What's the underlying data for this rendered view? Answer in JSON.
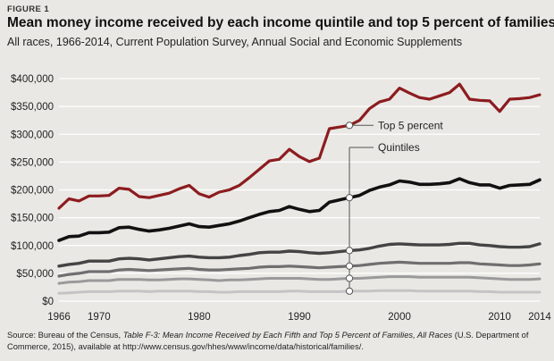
{
  "figure_label": "FIGURE 1",
  "title": "Mean money income received by each income quintile and top 5 percent of families",
  "subtitle": "All races, 1966-2014, Current Population Survey, Annual Social and Economic Supplements",
  "source": {
    "prefix": "Source: Bureau of the Census, ",
    "table_title": "Table F-3: Mean Income Received by Each Fifth and Top 5 Percent of Families, All Races",
    "suffix": " (U.S. Department of Commerce, 2015), available at http://www.census.gov/hhes/www/income/data/historical/families/."
  },
  "colors": {
    "top5": "#8c1c1f",
    "highest_quintile": "#111111",
    "fourth_quintile": "#444444",
    "third_quintile": "#6f6f6f",
    "second_quintile": "#9a9a9a",
    "lowest_quintile": "#c4c4c4",
    "grid": "#ffffff",
    "annotation_line": "#555555"
  },
  "chart_data": {
    "type": "line",
    "title": "",
    "xlabel": "",
    "ylabel": "",
    "xlim": [
      1966,
      2014
    ],
    "ylim": [
      0,
      400000
    ],
    "grid": true,
    "x_ticks": [
      {
        "value": 1966,
        "label": "1966"
      },
      {
        "value": 1970,
        "label": "1970"
      },
      {
        "value": 1980,
        "label": "1980"
      },
      {
        "value": 1990,
        "label": "1990"
      },
      {
        "value": 2000,
        "label": "2000"
      },
      {
        "value": 2010,
        "label": "2010"
      },
      {
        "value": 2014,
        "label": "2014"
      }
    ],
    "y_ticks": [
      {
        "value": 0,
        "label": "$0"
      },
      {
        "value": 50000,
        "label": "$50,000"
      },
      {
        "value": 100000,
        "label": "$100,000"
      },
      {
        "value": 150000,
        "label": "$150,000"
      },
      {
        "value": 200000,
        "label": "$200,000"
      },
      {
        "value": 250000,
        "label": "$250,000"
      },
      {
        "value": 300000,
        "label": "$300,000"
      },
      {
        "value": 350000,
        "label": "$350,000"
      },
      {
        "value": 400000,
        "label": "$400,000"
      }
    ],
    "x": [
      1966,
      1967,
      1968,
      1969,
      1970,
      1971,
      1972,
      1973,
      1974,
      1975,
      1976,
      1977,
      1978,
      1979,
      1980,
      1981,
      1982,
      1983,
      1984,
      1985,
      1986,
      1987,
      1988,
      1989,
      1990,
      1991,
      1992,
      1993,
      1994,
      1995,
      1996,
      1997,
      1998,
      1999,
      2000,
      2001,
      2002,
      2003,
      2004,
      2005,
      2006,
      2007,
      2008,
      2009,
      2010,
      2011,
      2012,
      2013,
      2014
    ],
    "series": [
      {
        "key": "top5",
        "values": [
          167000,
          184000,
          180000,
          189000,
          189000,
          190000,
          203000,
          201000,
          188000,
          186000,
          190000,
          194000,
          202000,
          208000,
          193000,
          187000,
          196000,
          200000,
          208000,
          222000,
          237000,
          252000,
          255000,
          273000,
          260000,
          251000,
          257000,
          310000,
          313000,
          316000,
          325000,
          346000,
          358000,
          363000,
          383000,
          374000,
          366000,
          363000,
          369000,
          375000,
          390000,
          363000,
          361000,
          360000,
          341000,
          363000,
          364000,
          366000,
          371000
        ]
      },
      {
        "key": "highest_quintile",
        "values": [
          109000,
          116000,
          117000,
          123000,
          123000,
          124000,
          132000,
          133000,
          129000,
          126000,
          128000,
          131000,
          135000,
          139000,
          134000,
          133000,
          136000,
          139000,
          144000,
          150000,
          156000,
          161000,
          163000,
          170000,
          165000,
          161000,
          163000,
          178000,
          182000,
          186000,
          190000,
          199000,
          205000,
          209000,
          216000,
          214000,
          210000,
          210000,
          211000,
          213000,
          220000,
          213000,
          209000,
          209000,
          203000,
          208000,
          209000,
          210000,
          218000
        ]
      },
      {
        "key": "fourth_quintile",
        "values": [
          63000,
          66000,
          68000,
          72000,
          72000,
          72000,
          76000,
          77000,
          76000,
          74000,
          76000,
          78000,
          80000,
          81000,
          79000,
          78000,
          78000,
          79000,
          82000,
          84000,
          87000,
          88000,
          88000,
          90000,
          89000,
          87000,
          86000,
          87000,
          89000,
          91000,
          92000,
          95000,
          99000,
          102000,
          103000,
          102000,
          101000,
          101000,
          101000,
          102000,
          104000,
          104000,
          101000,
          100000,
          98000,
          97000,
          97000,
          98000,
          103000
        ]
      },
      {
        "key": "third_quintile",
        "values": [
          45000,
          48000,
          50000,
          53000,
          53000,
          53000,
          56000,
          57000,
          56000,
          55000,
          56000,
          57000,
          58000,
          59000,
          57000,
          56000,
          56000,
          57000,
          58000,
          59000,
          61000,
          62000,
          62000,
          63000,
          62000,
          61000,
          60000,
          61000,
          62000,
          63000,
          64000,
          66000,
          68000,
          69000,
          70000,
          69000,
          68000,
          68000,
          68000,
          68000,
          69000,
          69000,
          67000,
          66000,
          65000,
          64000,
          64000,
          65000,
          67000
        ]
      },
      {
        "key": "second_quintile",
        "values": [
          32000,
          34000,
          35000,
          37000,
          37000,
          37000,
          39000,
          39000,
          39000,
          38000,
          38000,
          39000,
          40000,
          40000,
          39000,
          38000,
          37000,
          38000,
          38000,
          39000,
          40000,
          41000,
          41000,
          41000,
          41000,
          40000,
          39000,
          39000,
          40000,
          41000,
          41000,
          42000,
          43000,
          44000,
          44000,
          44000,
          43000,
          43000,
          43000,
          43000,
          43000,
          43000,
          42000,
          41000,
          40000,
          39000,
          39000,
          39000,
          40000
        ]
      },
      {
        "key": "lowest_quintile",
        "values": [
          14000,
          15000,
          16000,
          17000,
          17000,
          17000,
          18000,
          18000,
          18000,
          17000,
          18000,
          18000,
          18000,
          18000,
          17000,
          17000,
          16000,
          16000,
          17000,
          17000,
          17000,
          17000,
          17000,
          18000,
          18000,
          17000,
          17000,
          17000,
          17000,
          18000,
          18000,
          18000,
          19000,
          19000,
          19000,
          19000,
          18000,
          18000,
          18000,
          18000,
          18000,
          18000,
          17000,
          17000,
          16000,
          16000,
          16000,
          16000,
          16000
        ]
      }
    ],
    "annotations": {
      "top5_label": "Top 5 percent",
      "quintiles_label": "Quintiles",
      "marker_year": 1995
    }
  }
}
